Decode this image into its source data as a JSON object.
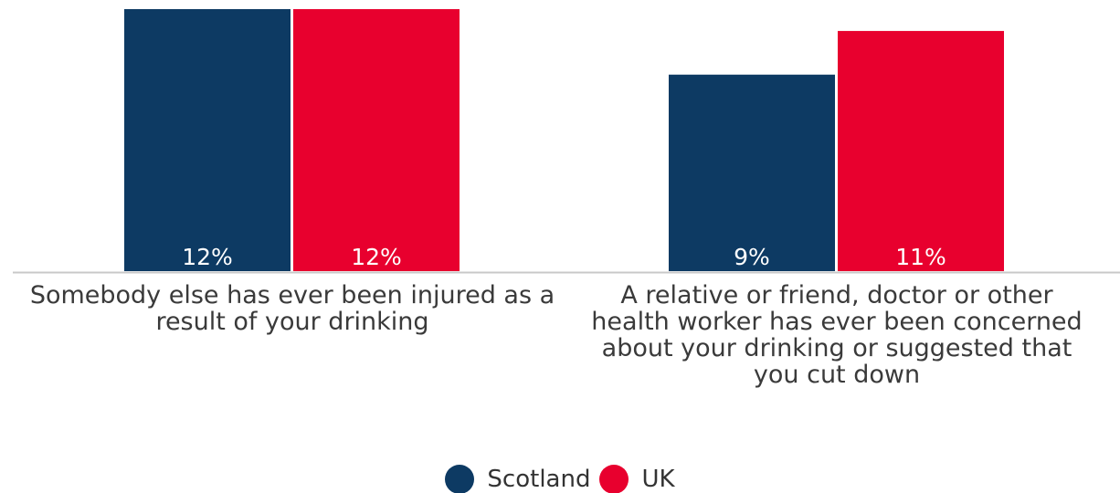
{
  "chart_data": {
    "type": "bar",
    "categories": [
      "Somebody else has ever been injured as a result of your drinking",
      "A relative or friend, doctor or other health worker has ever been concerned about your drinking or suggested that you cut down"
    ],
    "series": [
      {
        "name": "Scotland",
        "values": [
          12,
          9
        ],
        "labels": [
          "12%",
          "9%"
        ],
        "color": "#0d3a63"
      },
      {
        "name": "UK",
        "values": [
          12,
          11
        ],
        "labels": [
          "12%",
          "11%"
        ],
        "color": "#e8002e"
      }
    ],
    "ylim": [
      0,
      12
    ],
    "grid": false,
    "legend": "bottom-center"
  }
}
